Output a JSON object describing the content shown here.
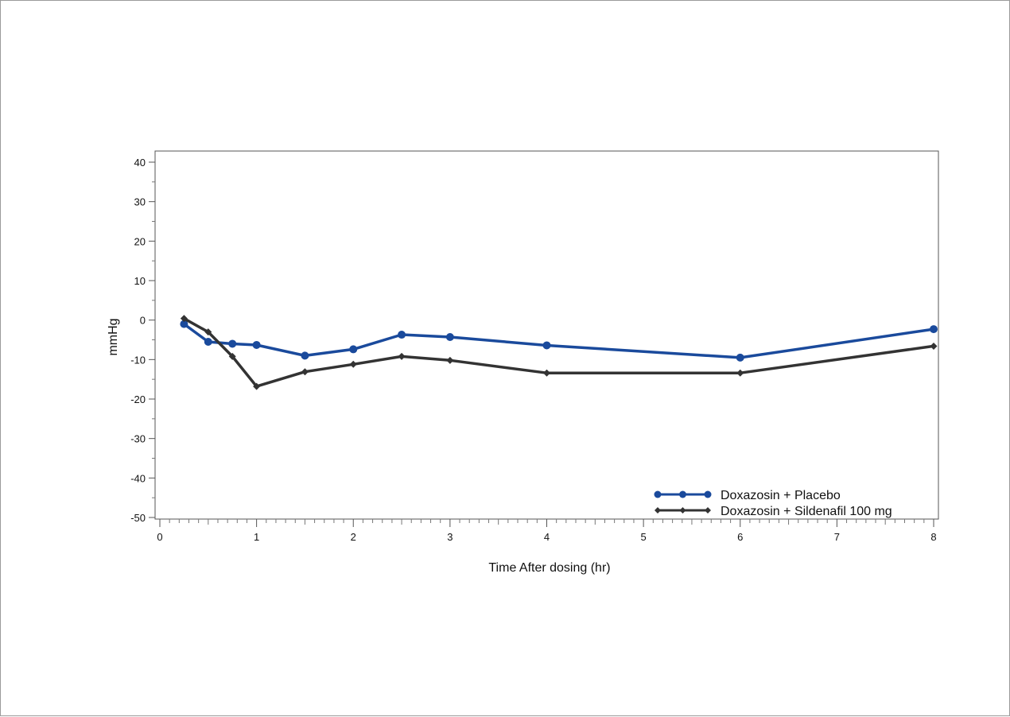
{
  "chart_data": {
    "type": "line",
    "title": "",
    "xlabel": "Time After dosing (hr)",
    "ylabel": "mmHg",
    "xlim": [
      0,
      8
    ],
    "ylim": [
      -50,
      40
    ],
    "xticks": [
      "0",
      "1",
      "2",
      "3",
      "4",
      "5",
      "6",
      "7",
      "8"
    ],
    "yticks": [
      "40",
      "30",
      "20",
      "10",
      "0",
      "-10",
      "-20",
      "-30",
      "-40",
      "-50"
    ],
    "grid": false,
    "legend_position": "bottom-right",
    "series": [
      {
        "name": "Doxazosin + Placebo",
        "color": "#1a4a9c",
        "marker": "circle",
        "x": [
          0.25,
          0.5,
          0.75,
          1,
          1.5,
          2,
          2.5,
          3,
          4,
          6,
          8
        ],
        "y": [
          -1,
          -5.5,
          -6,
          -6.3,
          -9,
          -7.4,
          -3.7,
          -4.3,
          -6.4,
          -9.5,
          -2.3
        ]
      },
      {
        "name": "Doxazosin + Sildenafil 100 mg",
        "color": "#333333",
        "marker": "diamond",
        "x": [
          0.25,
          0.5,
          0.75,
          1,
          1.5,
          2,
          2.5,
          3,
          4,
          6,
          8
        ],
        "y": [
          0.4,
          -3,
          -9.2,
          -16.8,
          -13.1,
          -11.2,
          -9.2,
          -10.2,
          -13.4,
          -13.4,
          -6.6
        ]
      }
    ]
  }
}
